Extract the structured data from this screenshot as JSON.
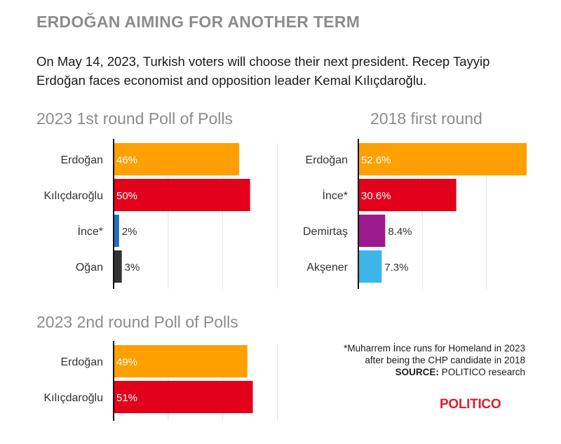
{
  "headline": "ERDOĞAN AIMING FOR ANOTHER TERM",
  "dek": "On May 14, 2023, Turkish voters will choose their next president. Recep Tayyip Erdoğan faces economist and opposition leader Kemal Kılıçdaroğlu.",
  "footnote": {
    "note_line1": "*Muharrem İnce runs for Homeland in 2023",
    "note_line2": "after being the CHP candidate in 2018",
    "source_label": "SOURCE:",
    "source_text": "POLITICO research"
  },
  "logo": "POLITICO",
  "colors": {
    "erdogan": "#ff9f00",
    "kilicdaroglu": "#e3001b",
    "ince": "#e3001b",
    "ince_2023": "#1f6fbf",
    "ogan": "#333333",
    "demirtas": "#9b1b8e",
    "aksener": "#3db5e6"
  },
  "chart_data": [
    {
      "id": "first_round_2023",
      "type": "bar",
      "orientation": "horizontal",
      "title": "2023 1st round Poll of Polls",
      "categories": [
        "Erdoğan",
        "Kılıçdaroğlu",
        "İnce*",
        "Oğan"
      ],
      "values": [
        46,
        50,
        2,
        3
      ],
      "labels": [
        "46%",
        "50%",
        "2%",
        "3%"
      ],
      "colors": [
        "#ff9f00",
        "#e3001b",
        "#1f6fbf",
        "#333333"
      ],
      "xlim": [
        0,
        65
      ],
      "gridlines": [
        0,
        20,
        40,
        60
      ],
      "unit": "%"
    },
    {
      "id": "first_round_2018",
      "type": "bar",
      "orientation": "horizontal",
      "title": "2018 first round",
      "categories": [
        "Erdoğan",
        "İnce*",
        "Demirtaş",
        "Akşener"
      ],
      "values": [
        52.6,
        30.6,
        8.4,
        7.3
      ],
      "labels": [
        "52.6%",
        "30.6%",
        "8.4%",
        "7.3%"
      ],
      "colors": [
        "#ff9f00",
        "#e3001b",
        "#9b1b8e",
        "#3db5e6"
      ],
      "xlim": [
        0,
        52.6
      ],
      "gridlines": [
        0,
        20,
        40
      ],
      "unit": "%"
    },
    {
      "id": "second_round_2023",
      "type": "bar",
      "orientation": "horizontal",
      "title": "2023 2nd round Poll of Polls",
      "categories": [
        "Erdoğan",
        "Kılıçdaroğlu"
      ],
      "values": [
        49,
        51
      ],
      "labels": [
        "49%",
        "51%"
      ],
      "colors": [
        "#ff9f00",
        "#e3001b"
      ],
      "xlim": [
        0,
        65
      ],
      "gridlines": [
        0,
        20,
        40,
        60
      ],
      "unit": "%"
    }
  ]
}
